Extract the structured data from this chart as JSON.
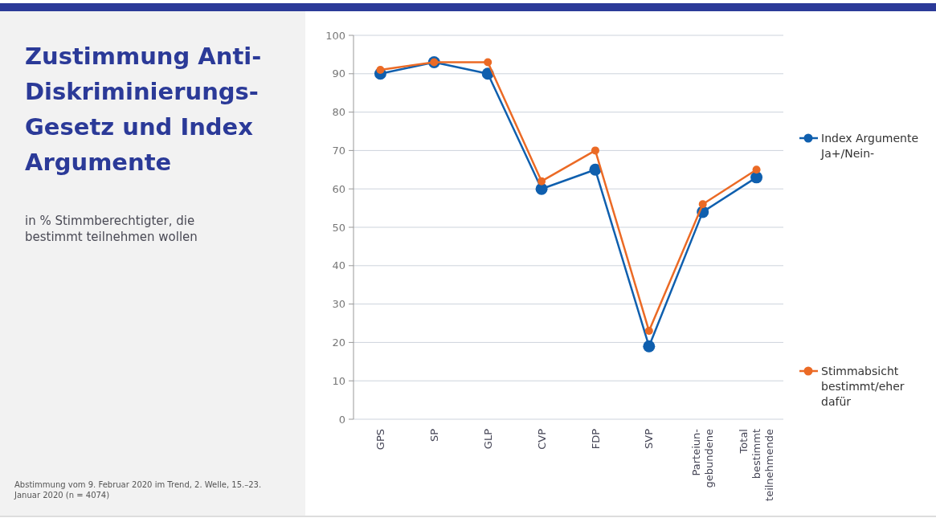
{
  "chart_data": {
    "type": "line",
    "title": "Zustimmung Anti-Diskriminierungs-Gesetz und Index Argumente",
    "subtitle": "in % Stimmberechtigter, die bestimmt teilnehmen wollen",
    "annotations": [
      "Abstimmung vom 9. Februar 2020 im Trend, 2. Welle, 15.–23. Januar 2020 (n = 4074)"
    ],
    "categories": [
      "GPS",
      "SP",
      "GLP",
      "CVP",
      "FDP",
      "SVP",
      "Parteiun-\ngebundene",
      "Total\nbestimmt\nteilnehmende"
    ],
    "series": [
      {
        "name": "Index Argumente Ja+/Nein-",
        "color": "#0f5fae",
        "values": [
          90,
          93,
          90,
          60,
          65,
          19,
          54,
          63
        ]
      },
      {
        "name": "Stimmabsicht bestimmt/eher dafür",
        "color": "#eb6a25",
        "values": [
          91,
          93,
          93,
          62,
          70,
          23,
          56,
          65
        ]
      }
    ],
    "ylim": [
      0,
      100
    ],
    "yticks": [
      0,
      10,
      20,
      30,
      40,
      50,
      60,
      70,
      80,
      90,
      100
    ],
    "grid": "y",
    "legend": "right",
    "marker": "circle",
    "line_style": "solid"
  }
}
